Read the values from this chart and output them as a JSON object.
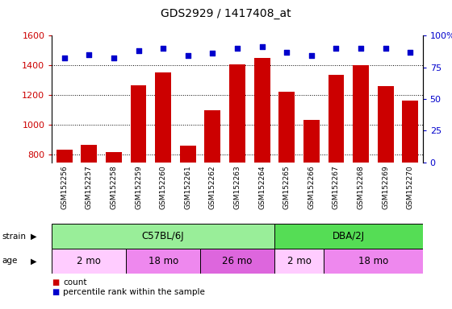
{
  "title": "GDS2929 / 1417408_at",
  "samples": [
    "GSM152256",
    "GSM152257",
    "GSM152258",
    "GSM152259",
    "GSM152260",
    "GSM152261",
    "GSM152262",
    "GSM152263",
    "GSM152264",
    "GSM152265",
    "GSM152266",
    "GSM152267",
    "GSM152268",
    "GSM152269",
    "GSM152270"
  ],
  "counts": [
    835,
    865,
    820,
    1265,
    1355,
    860,
    1100,
    1405,
    1450,
    1225,
    1035,
    1335,
    1400,
    1260,
    1165
  ],
  "percentiles": [
    82,
    85,
    82,
    88,
    90,
    84,
    86,
    90,
    91,
    87,
    84,
    90,
    90,
    90,
    87
  ],
  "ylim_left": [
    750,
    1600
  ],
  "ylim_right": [
    0,
    100
  ],
  "yticks_left": [
    800,
    1000,
    1200,
    1400,
    1600
  ],
  "yticks_right": [
    0,
    25,
    50,
    75,
    100
  ],
  "bar_color": "#cc0000",
  "dot_color": "#0000cc",
  "strain_groups": [
    {
      "label": "C57BL/6J",
      "start": 0,
      "end": 8,
      "color": "#99ee99"
    },
    {
      "label": "DBA/2J",
      "start": 9,
      "end": 14,
      "color": "#55dd55"
    }
  ],
  "age_groups": [
    {
      "label": "2 mo",
      "start": 0,
      "end": 2,
      "color": "#ffccff"
    },
    {
      "label": "18 mo",
      "start": 3,
      "end": 5,
      "color": "#ee88ee"
    },
    {
      "label": "26 mo",
      "start": 6,
      "end": 8,
      "color": "#dd66dd"
    },
    {
      "label": "2 mo",
      "start": 9,
      "end": 10,
      "color": "#ffccff"
    },
    {
      "label": "18 mo",
      "start": 11,
      "end": 14,
      "color": "#ee88ee"
    }
  ]
}
